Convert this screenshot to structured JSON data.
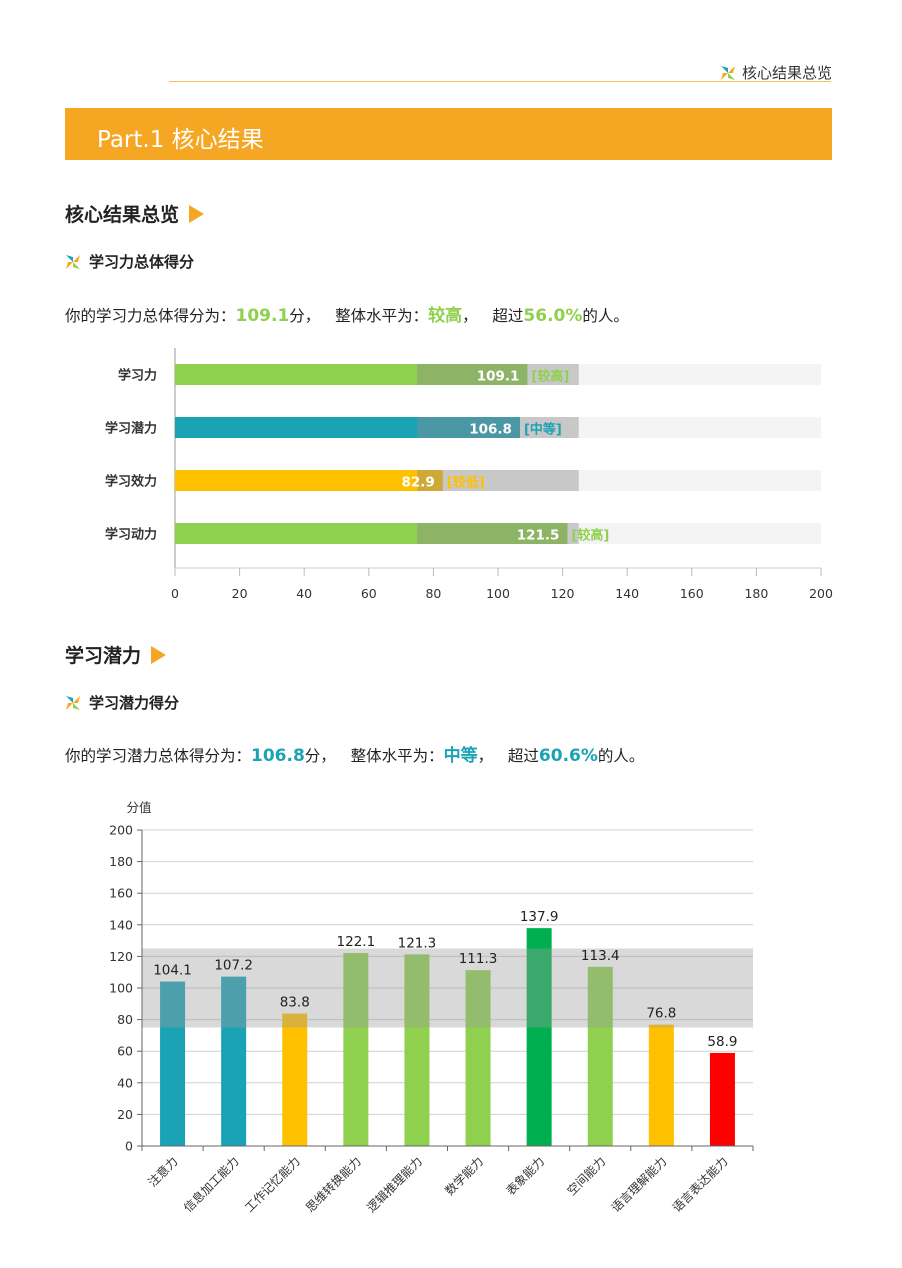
{
  "header": {
    "tag": "核心结果总览",
    "rule_color": "#f3c45c"
  },
  "banner": {
    "title": "Part.1 核心结果",
    "color": "#f5a623"
  },
  "section1": {
    "title": "核心结果总览",
    "subtitle": "学习力总体得分",
    "summary": {
      "prefix": "你的学习力总体得分为：",
      "score": "109.1",
      "unit": "分，",
      "level_prefix": "整体水平为：",
      "level": "较高",
      "level_suffix": "，",
      "exceed_prefix": "超过",
      "percent": "56.0%",
      "suffix": "的人。",
      "accent": "#8fd14f"
    }
  },
  "section2": {
    "title": "学习潜力",
    "subtitle": "学习潜力得分",
    "summary": {
      "prefix": "你的学习潜力总体得分为：",
      "score": "106.8",
      "unit": "分，",
      "level_prefix": "整体水平为：",
      "level": "中等",
      "level_suffix": "，",
      "exceed_prefix": "超过",
      "percent": "60.6%",
      "suffix": "的人。",
      "accent": "#1aa3b5"
    }
  },
  "chart_data": [
    {
      "type": "bar",
      "orientation": "horizontal",
      "categories": [
        "学习力",
        "学习潜力",
        "学习效力",
        "学习动力"
      ],
      "values": [
        109.1,
        106.8,
        82.9,
        121.5
      ],
      "levels": [
        "[较高]",
        "[中等]",
        "[较低]",
        "[较高]"
      ],
      "colors": [
        "#8fd14f",
        "#1aa3b5",
        "#ffc000",
        "#8fd14f"
      ],
      "xlim": [
        0,
        200
      ],
      "xticks": [
        0,
        20,
        40,
        60,
        80,
        100,
        120,
        140,
        160,
        180,
        200
      ],
      "reference_band": [
        75,
        125
      ],
      "grid": false,
      "title": "",
      "xlabel": "",
      "ylabel": ""
    },
    {
      "type": "bar",
      "orientation": "vertical",
      "categories": [
        "注意力",
        "信息加工能力",
        "工作记忆能力",
        "思维转换能力",
        "逻辑推理能力",
        "数学能力",
        "表象能力",
        "空间能力",
        "语言理解能力",
        "语言表达能力"
      ],
      "values": [
        104.1,
        107.2,
        83.8,
        122.1,
        121.3,
        111.3,
        137.9,
        113.4,
        76.8,
        58.9
      ],
      "colors": [
        "#1aa3b5",
        "#1aa3b5",
        "#ffc000",
        "#8fd14f",
        "#8fd14f",
        "#8fd14f",
        "#00b050",
        "#8fd14f",
        "#ffc000",
        "#ff0000"
      ],
      "ylim": [
        0,
        200
      ],
      "yticks": [
        0,
        20,
        40,
        60,
        80,
        100,
        120,
        140,
        160,
        180,
        200
      ],
      "reference_band": [
        75,
        125
      ],
      "grid": true,
      "ylabel": "分值",
      "title": "",
      "xlabel": ""
    }
  ]
}
